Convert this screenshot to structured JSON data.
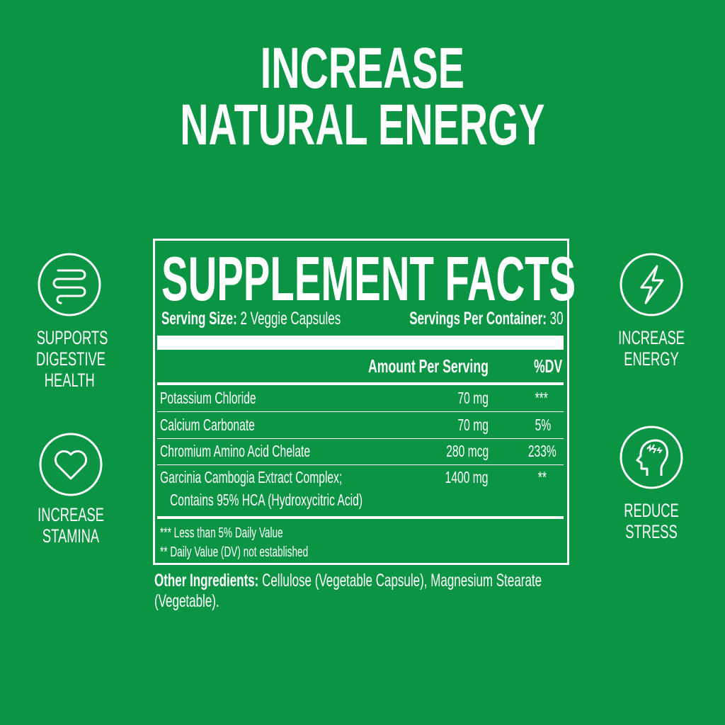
{
  "headline": {
    "line1": "INCREASE",
    "line2": "NATURAL ENERGY"
  },
  "features": {
    "left": [
      {
        "icon": "intestine-icon",
        "label_lines": [
          "SUPPORTS",
          "DIGESTIVE",
          "HEALTH"
        ]
      },
      {
        "icon": "heart-icon",
        "label_lines": [
          "INCREASE",
          "STAMINA"
        ]
      }
    ],
    "right": [
      {
        "icon": "lightning-icon",
        "label_lines": [
          "INCREASE",
          "ENERGY"
        ]
      },
      {
        "icon": "head-stress-icon",
        "label_lines": [
          "REDUCE",
          "STRESS"
        ]
      }
    ]
  },
  "facts": {
    "title": "SUPPLEMENT FACTS",
    "serving_size_label": "Serving Size:",
    "serving_size_value": "2 Veggie Capsules",
    "servings_label": "Servings Per Container:",
    "servings_value": "30",
    "col_amount": "Amount Per Serving",
    "col_dv": "%DV",
    "rows": [
      {
        "name": "Potassium Chloride",
        "amount": "70 mg",
        "dv": "***"
      },
      {
        "name": "Calcium Carbonate",
        "amount": "70 mg",
        "dv": "5%"
      },
      {
        "name": "Chromium Amino Acid Chelate",
        "amount": "280 mcg",
        "dv": "233%"
      },
      {
        "name": "Garcinia Cambogia Extract Complex;",
        "name2": "Contains 95% HCA (Hydroxycitric Acid)",
        "amount": "1400 mg",
        "dv": "**"
      }
    ],
    "footnote1": "*** Less than 5% Daily Value",
    "footnote2": "** Daily Value (DV) not established"
  },
  "other_ingredients": {
    "label": "Other Ingredients:",
    "text1": "Cellulose (Vegetable Capsule), Magnesium Stearate",
    "text2": "(Vegetable)."
  },
  "colors": {
    "background": "#0b9444",
    "foreground": "#ffffff"
  }
}
